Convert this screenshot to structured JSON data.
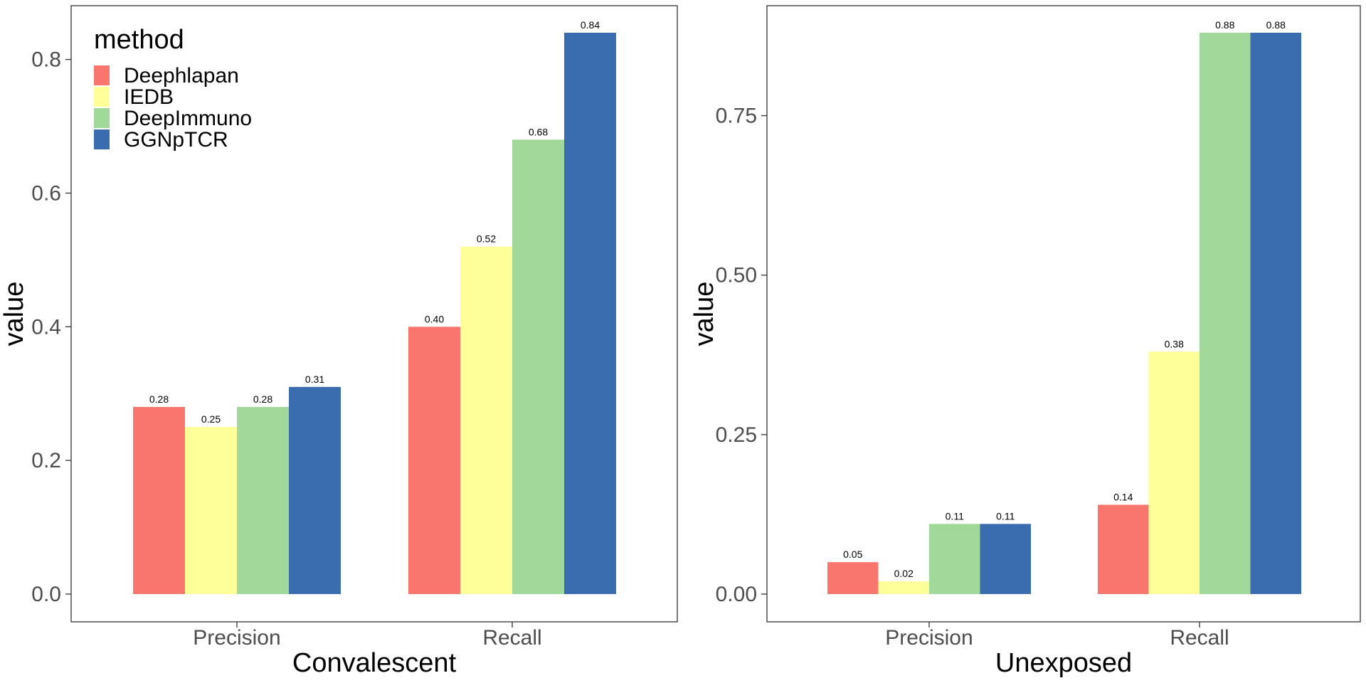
{
  "legend": {
    "title": "method",
    "placement": "top-left",
    "colors": [
      "#f8766d",
      "#ffff99",
      "#a1d99b",
      "#3a6cb0"
    ]
  },
  "chart_data": [
    {
      "type": "bar",
      "xlabel": "Convalescent",
      "ylabel": "value",
      "categories": [
        "Precision",
        "Recall"
      ],
      "ylim": [
        0,
        0.86
      ],
      "yticks": [
        0.0,
        0.2,
        0.4,
        0.6,
        0.8
      ],
      "ytick_labels": [
        "0.0",
        "0.2",
        "0.4",
        "0.6",
        "0.8"
      ],
      "grid": false,
      "series": [
        {
          "name": "Deephlapan",
          "values": [
            0.28,
            0.4
          ],
          "labels": [
            "0.28",
            "0.40"
          ]
        },
        {
          "name": "IEDB",
          "values": [
            0.25,
            0.52
          ],
          "labels": [
            "0.25",
            "0.52"
          ]
        },
        {
          "name": "DeepImmuno",
          "values": [
            0.28,
            0.68
          ],
          "labels": [
            "0.28",
            "0.68"
          ]
        },
        {
          "name": "GGNpTCR",
          "values": [
            0.31,
            0.84
          ],
          "labels": [
            "0.31",
            "0.84"
          ]
        }
      ]
    },
    {
      "type": "bar",
      "xlabel": "Unexposed",
      "ylabel": "value",
      "categories": [
        "Precision",
        "Recall"
      ],
      "ylim": [
        0,
        0.9
      ],
      "yticks": [
        0.0,
        0.25,
        0.5,
        0.75
      ],
      "ytick_labels": [
        "0.00",
        "0.25",
        "0.50",
        "0.75"
      ],
      "grid": false,
      "series": [
        {
          "name": "Deephlapan",
          "values": [
            0.05,
            0.14
          ],
          "labels": [
            "0.05",
            "0.14"
          ]
        },
        {
          "name": "IEDB",
          "values": [
            0.02,
            0.38
          ],
          "labels": [
            "0.02",
            "0.38"
          ]
        },
        {
          "name": "DeepImmuno",
          "values": [
            0.11,
            0.88
          ],
          "labels": [
            "0.11",
            "0.88"
          ]
        },
        {
          "name": "GGNpTCR",
          "values": [
            0.11,
            0.88
          ],
          "labels": [
            "0.11",
            "0.88"
          ]
        }
      ]
    }
  ]
}
